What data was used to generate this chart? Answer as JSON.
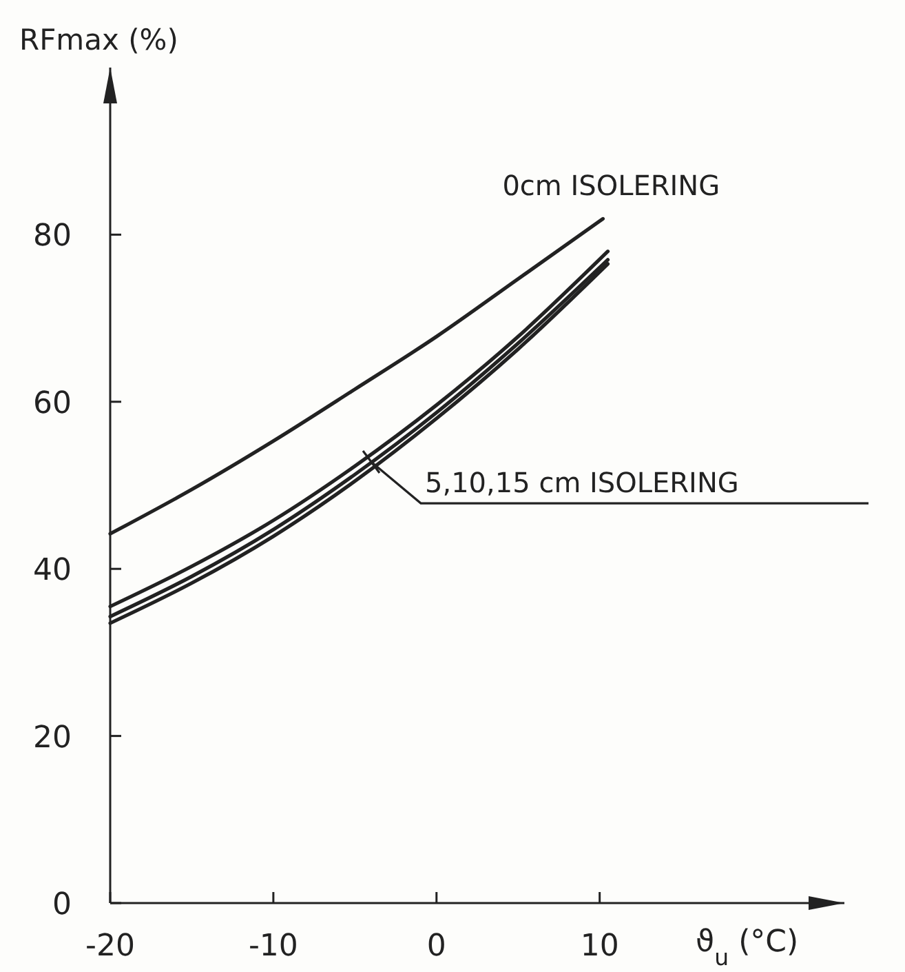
{
  "chart_data": {
    "type": "line",
    "xlabel": "ϑ$_{u}$ (°C)",
    "ylabel": "RFmax (%)",
    "xlim": [
      -20,
      25
    ],
    "ylim": [
      0,
      100
    ],
    "xticks": [
      -20,
      -10,
      0,
      10
    ],
    "yticks": [
      0,
      20,
      40,
      60,
      80
    ],
    "grid": false,
    "marker": "none",
    "line_style": "solid",
    "series": [
      {
        "color": "#222222",
        "x": [
          -20,
          -15,
          -10,
          -5,
          0,
          5,
          10.2
        ],
        "values": [
          44.2,
          49.5,
          55.3,
          61.5,
          67.8,
          74.7,
          81.9
        ]
      },
      {
        "color": "#222222",
        "x": [
          -20,
          -15,
          -10,
          -5,
          0,
          5,
          10.5
        ],
        "values": [
          35.5,
          40.3,
          45.8,
          52.3,
          59.6,
          67.8,
          78
        ]
      },
      {
        "color": "#222222",
        "x": [
          -20,
          -15,
          -10,
          -5,
          0,
          5,
          10.5
        ],
        "values": [
          34.3,
          39.1,
          44.7,
          51.3,
          58.7,
          67,
          77
        ]
      },
      {
        "color": "#222222",
        "x": [
          -20,
          -15,
          -10,
          -5,
          0,
          5,
          10.5
        ],
        "values": [
          33.5,
          38.3,
          43.9,
          50.5,
          58,
          66.3,
          76.5
        ]
      }
    ],
    "annotations": [
      {
        "text": "0cm ISOLERING",
        "x": 10.2,
        "y": 81.9
      },
      {
        "text": "5,10,15 cm ISOLERING",
        "x": -4,
        "y": 52.8
      }
    ]
  }
}
